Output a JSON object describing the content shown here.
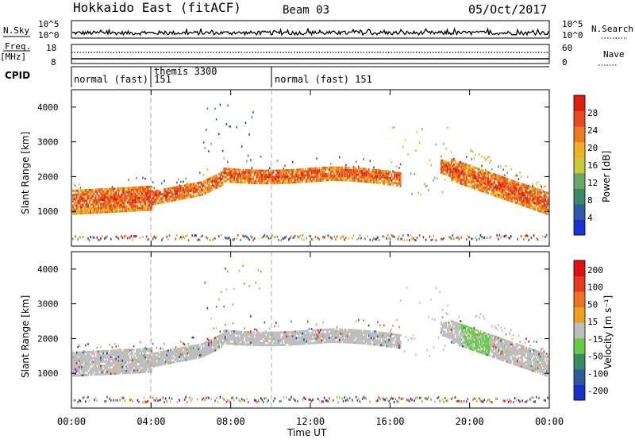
{
  "header": {
    "station": "Hokkaido East (fitACF)",
    "beam": "Beam 03",
    "date": "05/Oct/2017"
  },
  "strip": {
    "nsky_label": "N.Sky",
    "nsky_ticks": [
      "10^5",
      "10^0"
    ],
    "nsearch_label": "N.Search",
    "freq_label_line1": "Freq.",
    "freq_label_line2": "[MHz]",
    "freq_ticks": [
      "18",
      "8"
    ],
    "nave_label": "Nave",
    "nave_ticks": [
      "60",
      "0"
    ],
    "cpid_label": "CPID",
    "cpid_segments": [
      "normal (fast) 151",
      "themis 3300",
      "normal (fast) 151"
    ]
  },
  "chart_data": [
    {
      "type": "heatmap",
      "panel": "power",
      "ylabel": "Slant Range [km]",
      "xlabel": "Time UT",
      "x_ticks": [
        "00:00",
        "04:00",
        "08:00",
        "12:00",
        "16:00",
        "20:00",
        "00:00"
      ],
      "y_ticks": [
        1000,
        2000,
        3000,
        4000
      ],
      "colorbar": {
        "label": "Power [dB]",
        "ticks": [
          4,
          8,
          12,
          16,
          20,
          24,
          28
        ]
      },
      "colors": [
        "#1b2fd6",
        "#2e5aa8",
        "#3a8a66",
        "#6aa86a",
        "#c9c93a",
        "#f0b020",
        "#f07a20",
        "#e84a20",
        "#e01e10"
      ]
    },
    {
      "type": "heatmap",
      "panel": "velocity",
      "ylabel": "Slant Range [km]",
      "xlabel": "Time UT",
      "x_ticks": [
        "00:00",
        "04:00",
        "08:00",
        "12:00",
        "16:00",
        "20:00",
        "00:00"
      ],
      "y_ticks": [
        1000,
        2000,
        3000,
        4000
      ],
      "colorbar": {
        "label": "Velocity [m s⁻¹]",
        "ticks": [
          200,
          100,
          50,
          15,
          -15,
          -50,
          -100,
          -200
        ]
      },
      "colors": [
        "#1a2fd0",
        "#2e5a9a",
        "#3a8a60",
        "#66cc44",
        "#bdbdbd",
        "#f0a020",
        "#f07020",
        "#e83a20",
        "#e01010"
      ]
    }
  ],
  "x_axis_title": "Time UT"
}
